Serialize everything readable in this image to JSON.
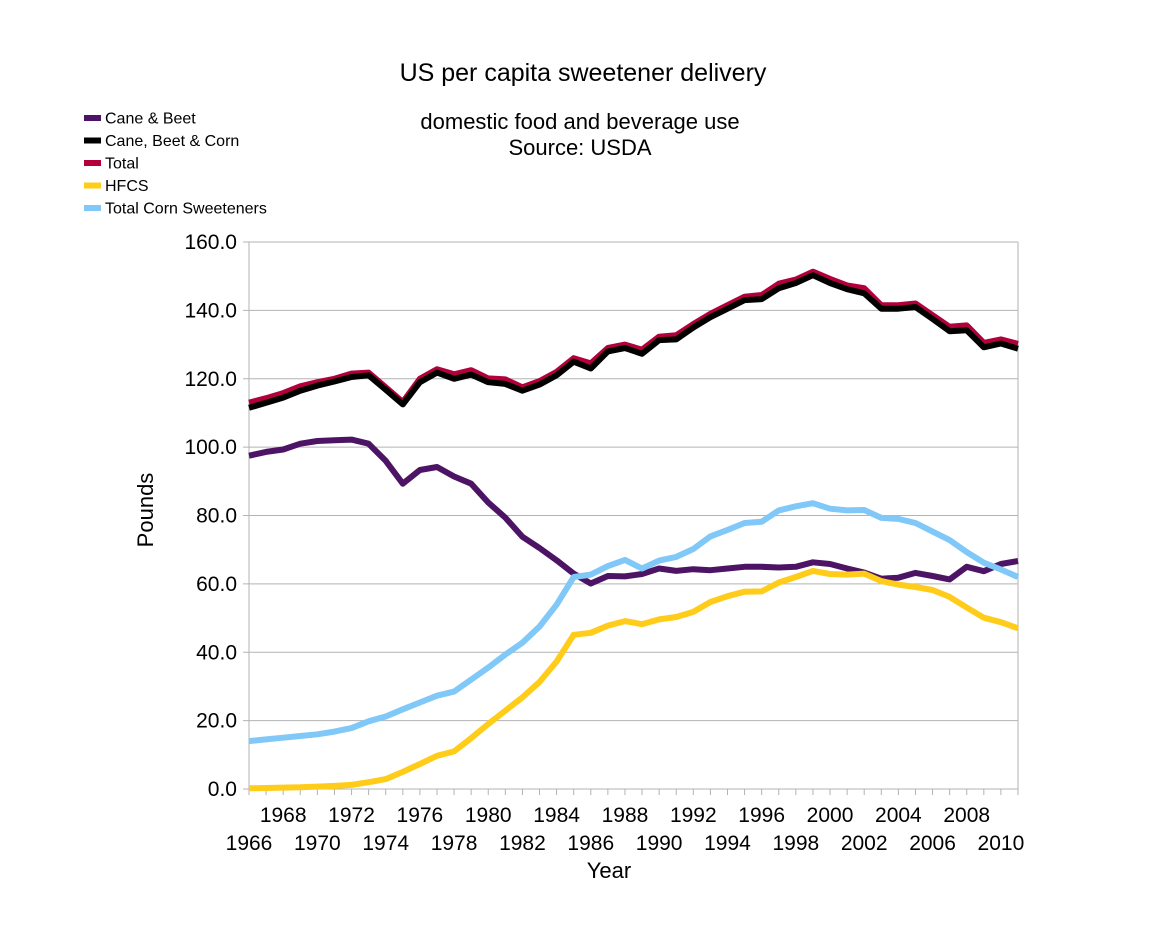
{
  "chart_data": {
    "type": "line",
    "title": "US per capita sweetener delivery",
    "subtitle_lines": [
      "domestic food and beverage use",
      "Source: USDA"
    ],
    "xlabel": "Year",
    "ylabel": "Pounds",
    "ylim": [
      0,
      160
    ],
    "yticks": [
      "0.0",
      "20.0",
      "40.0",
      "60.0",
      "80.0",
      "100.0",
      "120.0",
      "140.0",
      "160.0"
    ],
    "xlim": [
      1966,
      2011
    ],
    "xticks_lower": [
      1966,
      1970,
      1974,
      1978,
      1982,
      1986,
      1990,
      1994,
      1998,
      2002,
      2006,
      2010
    ],
    "xticks_upper": [
      1968,
      1972,
      1976,
      1980,
      1984,
      1988,
      1992,
      1996,
      2000,
      2004,
      2008
    ],
    "grid": "horizontal",
    "legend_position": "top-left",
    "x": [
      1966,
      1967,
      1968,
      1969,
      1970,
      1971,
      1972,
      1973,
      1974,
      1975,
      1976,
      1977,
      1978,
      1979,
      1980,
      1981,
      1982,
      1983,
      1984,
      1985,
      1986,
      1987,
      1988,
      1989,
      1990,
      1991,
      1992,
      1993,
      1994,
      1995,
      1996,
      1997,
      1998,
      1999,
      2000,
      2001,
      2002,
      2003,
      2004,
      2005,
      2006,
      2007,
      2008,
      2009,
      2010,
      2011
    ],
    "series": [
      {
        "name": "Total",
        "color": "#b3003b",
        "values": [
          113,
          114.3,
          115.8,
          117.8,
          119,
          120,
          121.5,
          121.8,
          117.5,
          113.2,
          120,
          122.8,
          121.3,
          122.5,
          120.1,
          119.8,
          117.5,
          119.3,
          122,
          126,
          124.5,
          129,
          130,
          128.5,
          132.3,
          132.7,
          136,
          139,
          141.5,
          144,
          144.5,
          147.8,
          149,
          151.3,
          149.2,
          147.3,
          146.5,
          141.5,
          141.5,
          142,
          138.6,
          135.2,
          135.6,
          130.5,
          131.5,
          130.2
        ]
      },
      {
        "name": "Cane, Beet & Corn",
        "color": "#000000",
        "values": [
          111.5,
          113,
          114.5,
          116.5,
          118,
          119.2,
          120.5,
          121,
          116.8,
          112.5,
          119,
          121.8,
          120,
          121.2,
          119,
          118.5,
          116.5,
          118.3,
          121,
          125,
          123,
          128,
          129,
          127.3,
          131.3,
          131.5,
          135,
          138,
          140.5,
          143,
          143.3,
          146.5,
          148,
          150.3,
          148,
          146.2,
          145,
          140.5,
          140.5,
          141,
          137.5,
          133.9,
          134.2,
          129.2,
          130.3,
          128.8
        ]
      },
      {
        "name": "Cane & Beet",
        "color": "#4d1466",
        "values": [
          97.5,
          98.6,
          99.3,
          101,
          101.8,
          102,
          102.2,
          101,
          96,
          89.3,
          93.3,
          94.2,
          91.4,
          89.3,
          83.8,
          79.4,
          73.8,
          70.5,
          66.9,
          63,
          60.1,
          62.3,
          62.2,
          62.9,
          64.5,
          63.8,
          64.3,
          64,
          64.5,
          65,
          65,
          64.8,
          65,
          66.3,
          65.8,
          64.5,
          63.3,
          61.5,
          61.8,
          63.2,
          62.3,
          61.3,
          65,
          63.7,
          65.8,
          66.7
        ]
      },
      {
        "name": "Total Corn Sweeteners",
        "color": "#7fc8f8",
        "values": [
          14,
          14.5,
          15,
          15.5,
          16,
          16.8,
          17.8,
          19.8,
          21.2,
          23.3,
          25.3,
          27.3,
          28.5,
          32,
          35.5,
          39.3,
          42.8,
          47.5,
          53.9,
          62,
          62.7,
          65.2,
          67,
          64.5,
          66.8,
          67.9,
          70.2,
          73.9,
          75.8,
          77.8,
          78.2,
          81.5,
          82.7,
          83.6,
          82,
          81.5,
          81.6,
          79.3,
          79,
          77.8,
          75.3,
          72.8,
          69.3,
          66.2,
          64.2,
          62
        ]
      },
      {
        "name": "HFCS",
        "color": "#ffcc1a",
        "values": [
          0.2,
          0.3,
          0.4,
          0.5,
          0.7,
          0.9,
          1.2,
          2,
          2.9,
          5,
          7.3,
          9.7,
          11,
          14.9,
          19,
          22.9,
          26.8,
          31.3,
          37.3,
          45.1,
          45.7,
          47.8,
          49.1,
          48.2,
          49.6,
          50.3,
          51.8,
          54.7,
          56.4,
          57.7,
          57.8,
          60.4,
          62,
          63.8,
          62.9,
          62.7,
          63,
          60.8,
          59.8,
          59.1,
          58.2,
          56.2,
          53.1,
          50.1,
          48.8,
          47
        ]
      }
    ],
    "legend": [
      {
        "name": "Cane & Beet",
        "color": "#4d1466"
      },
      {
        "name": "Cane, Beet & Corn",
        "color": "#000000"
      },
      {
        "name": "Total",
        "color": "#b3003b"
      },
      {
        "name": "HFCS",
        "color": "#ffcc1a"
      },
      {
        "name": "Total Corn Sweeteners",
        "color": "#7fc8f8"
      }
    ]
  }
}
